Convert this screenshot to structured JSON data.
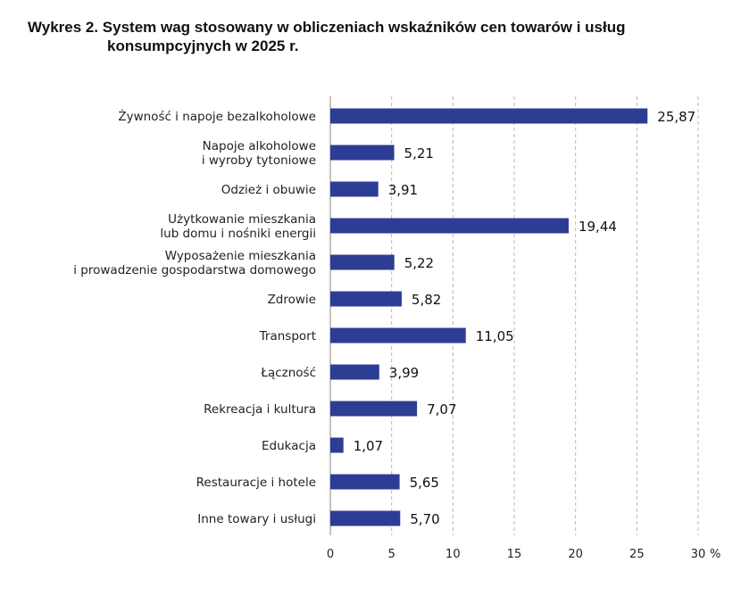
{
  "chart_data": {
    "type": "bar",
    "orientation": "horizontal",
    "title_line1": "Wykres 2. System wag stosowany w obliczeniach wskaźników cen towarów i usług",
    "title_line2": "konsumpcyjnych w 2025 r.",
    "categories": [
      [
        "Żywność i napoje bezalkoholowe"
      ],
      [
        "Napoje alkoholowe",
        "i wyroby tytoniowe"
      ],
      [
        "Odzież i obuwie"
      ],
      [
        "Użytkowanie mieszkania",
        "lub domu i nośniki energii"
      ],
      [
        "Wyposażenie mieszkania",
        "i prowadzenie gospodarstwa domowego"
      ],
      [
        "Zdrowie"
      ],
      [
        "Transport"
      ],
      [
        "Łączność"
      ],
      [
        "Rekreacja i kultura"
      ],
      [
        "Edukacja"
      ],
      [
        "Restauracje i hotele"
      ],
      [
        "Inne towary i usługi"
      ]
    ],
    "values": [
      25.87,
      5.21,
      3.91,
      19.44,
      5.22,
      5.82,
      11.05,
      3.99,
      7.07,
      1.07,
      5.65,
      5.7
    ],
    "value_labels": [
      "25,87",
      "5,21",
      "3,91",
      "19,44",
      "5,22",
      "5,82",
      "11,05",
      "3,99",
      "7,07",
      "1,07",
      "5,65",
      "5,70"
    ],
    "xlim": [
      0,
      30
    ],
    "xticks": [
      0,
      5,
      10,
      15,
      20,
      25,
      30
    ],
    "xtick_labels": [
      "0",
      "5",
      "10",
      "15",
      "20",
      "25",
      "30"
    ],
    "x_unit": "%",
    "grid": true,
    "bar_color": "#2e3d94"
  }
}
